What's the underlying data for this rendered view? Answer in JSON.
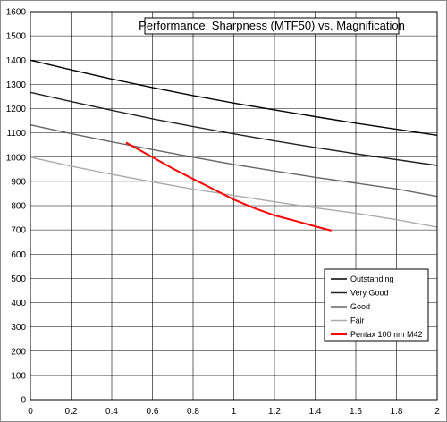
{
  "chart_data": {
    "type": "line",
    "title": "Performance: Sharpness (MTF50) vs. Magnification",
    "xlabel": "",
    "ylabel": "",
    "xlim": [
      0,
      2
    ],
    "ylim": [
      0,
      1600
    ],
    "x_ticks": [
      0,
      0.2,
      0.4,
      0.6,
      0.8,
      1,
      1.2,
      1.4,
      1.6,
      1.8,
      2
    ],
    "y_ticks": [
      0,
      100,
      200,
      300,
      400,
      500,
      600,
      700,
      800,
      900,
      1000,
      1100,
      1200,
      1300,
      1400,
      1500,
      1600
    ],
    "x_tick_labels": [
      "0",
      "0.2",
      "0.4",
      "0.6",
      "0.8",
      "1",
      "1.2",
      "1.4",
      "1.6",
      "1.8",
      "2"
    ],
    "y_tick_labels": [
      "0",
      "100",
      "200",
      "300",
      "400",
      "500",
      "600",
      "700",
      "800",
      "900",
      "1000",
      "1100",
      "1200",
      "1300",
      "1400",
      "1500",
      "1600"
    ],
    "grid": true,
    "legend_position": "bottom-right",
    "series": [
      {
        "name": "Outstanding",
        "color": "#000000",
        "x": [
          0,
          0.2,
          0.4,
          0.6,
          0.8,
          1.0,
          1.2,
          1.4,
          1.6,
          1.8,
          2.0
        ],
        "y": [
          1400,
          1360,
          1322,
          1287,
          1254,
          1223,
          1195,
          1167,
          1140,
          1115,
          1090
        ]
      },
      {
        "name": "Very Good",
        "color": "#222222",
        "x": [
          0,
          0.2,
          0.4,
          0.6,
          0.8,
          1.0,
          1.2,
          1.4,
          1.6,
          1.8,
          2.0
        ],
        "y": [
          1267,
          1229,
          1193,
          1158,
          1126,
          1096,
          1067,
          1040,
          1014,
          990,
          966
        ]
      },
      {
        "name": "Good",
        "color": "#666666",
        "x": [
          0,
          0.2,
          0.4,
          0.6,
          0.8,
          1.0,
          1.2,
          1.4,
          1.6,
          1.8,
          2.0
        ],
        "y": [
          1133,
          1097,
          1063,
          1031,
          1000,
          970,
          943,
          917,
          893,
          869,
          838
        ]
      },
      {
        "name": "Fair",
        "color": "#aaaaaa",
        "x": [
          0,
          0.2,
          0.4,
          0.6,
          0.8,
          1.0,
          1.2,
          1.4,
          1.6,
          1.8,
          2.0
        ],
        "y": [
          1000,
          963,
          929,
          898,
          868,
          842,
          816,
          791,
          769,
          742,
          712
        ]
      },
      {
        "name": "Pentax 100mm M42",
        "color": "#ff0000",
        "x": [
          0.47,
          0.6,
          0.7,
          0.8,
          0.9,
          1.0,
          1.1,
          1.2,
          1.3,
          1.4,
          1.48
        ],
        "y": [
          1060,
          1000,
          953,
          910,
          868,
          825,
          790,
          760,
          738,
          715,
          697
        ]
      }
    ]
  }
}
